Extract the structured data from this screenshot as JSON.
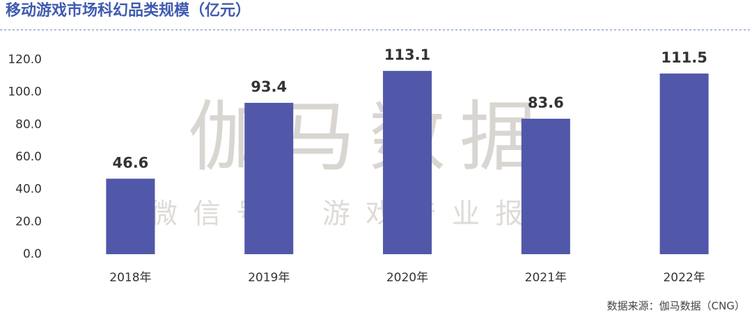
{
  "chart_data": {
    "type": "bar",
    "title": "移动游戏市场科幻品类规模（亿元）",
    "categories": [
      "2018年",
      "2019年",
      "2020年",
      "2021年",
      "2022年"
    ],
    "values": [
      46.6,
      93.4,
      113.1,
      83.6,
      111.5
    ],
    "color": "#5158a9",
    "ylim": [
      0,
      120
    ],
    "yticks": [
      {
        "value": 0,
        "label": "0.0"
      },
      {
        "value": 20,
        "label": "20.0"
      },
      {
        "value": 40,
        "label": "40.0"
      },
      {
        "value": 60,
        "label": "60.0"
      },
      {
        "value": 80,
        "label": "80.0"
      },
      {
        "value": 100,
        "label": "100.0"
      },
      {
        "value": 120,
        "label": "120.0"
      }
    ],
    "watermark": "伽马数据",
    "watermark_subtitle": "微信号：游戏产业报告",
    "source": "数据来源：伽马数据（CNG）"
  }
}
